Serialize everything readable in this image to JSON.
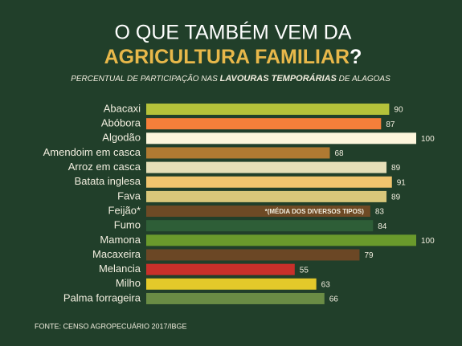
{
  "title_line1": "O QUE TAMBÉM VEM DA",
  "title_highlight": "AGRICULTURA FAMILIAR",
  "title_end": "?",
  "subtitle_start": "PERCENTUAL DE PARTICIPAÇÃO NAS ",
  "subtitle_highlight": "LAVOURAS TEMPORÁRIAS",
  "subtitle_end": " DE ALAGOAS",
  "source": "FONTE: CENSO AGROPECUÁRIO 2017/IBGE",
  "chart_data": {
    "type": "hbar",
    "categories": [
      "Abacaxi",
      "Abóbora",
      "Algodão",
      "Amendoim em casca",
      "Arroz em casca",
      "Batata inglesa",
      "Fava",
      "Feijão*",
      "Fumo",
      "Mamona",
      "Macaxeira",
      "Melancia",
      "Milho",
      "Palma forrageira"
    ],
    "values": [
      90,
      87,
      100,
      68,
      89,
      91,
      89,
      83,
      84,
      100,
      79,
      55,
      63,
      66
    ],
    "colors": [
      "#b5c23a",
      "#f57f3a",
      "#fdf6dc",
      "#b07a32",
      "#e6dfb8",
      "#f0c46e",
      "#d9c77a",
      "#6e4a25",
      "#2e5e37",
      "#6a9a2c",
      "#6b4725",
      "#c8302a",
      "#e3c92a",
      "#6a8c45"
    ],
    "annotation": "*(MÉDIA DOS DIVERSOS TIPOS)"
  }
}
